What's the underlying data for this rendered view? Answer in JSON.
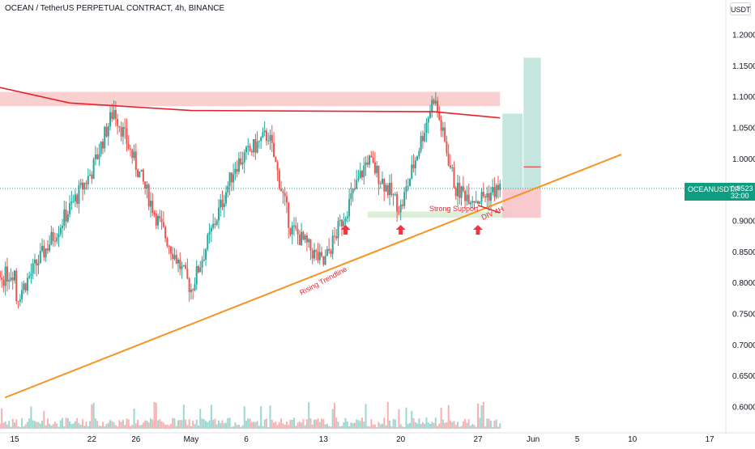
{
  "header": {
    "title": "OCEAN / TetherUS PERPETUAL CONTRACT, 4h, BINANCE",
    "currency": "USDT"
  },
  "last_price": {
    "symbol": "OCEANUSDT.P",
    "price": "0.9523",
    "timer": "32:00",
    "color": "#0f9d82"
  },
  "annotations": {
    "rising_trendline": "Rising Trendline",
    "strong_support": "Strong Support",
    "div_4h": "DIV 4H"
  },
  "colors": {
    "up": "#26a69a",
    "down": "#ef5350",
    "ma": "#e5232d",
    "trendline": "#f7931e",
    "resistance_zone": "#f8c8c8",
    "support_zone": "#d9ecd5",
    "arrow": "#f23645"
  },
  "chart_data": {
    "type": "candlestick",
    "symbol": "OCEAN / TetherUS PERPETUAL CONTRACT",
    "interval": "4h",
    "exchange": "BINANCE",
    "y_axis": {
      "range": [
        0.6,
        1.2
      ],
      "ticks": [
        "1.2000",
        "1.1500",
        "1.1000",
        "1.0500",
        "1.0000",
        "0.9500",
        "0.9000",
        "0.8500",
        "0.8000",
        "0.7500",
        "0.7000",
        "0.6500",
        "0.6000"
      ]
    },
    "x_axis": {
      "ticks": [
        "15",
        "22",
        "26",
        "May",
        "6",
        "13",
        "20",
        "27",
        "Jun",
        "5",
        "10",
        "17"
      ]
    },
    "key_prices": [
      {
        "x": "Apr 15",
        "price": 0.77
      },
      {
        "x": "Apr 22",
        "price": 0.98
      },
      {
        "x": "Apr 24",
        "price": 1.08
      },
      {
        "x": "Apr 28",
        "price": 0.9
      },
      {
        "x": "May 1",
        "price": 0.79
      },
      {
        "x": "May 5",
        "price": 0.99
      },
      {
        "x": "May 8",
        "price": 1.04
      },
      {
        "x": "May 10",
        "price": 0.89
      },
      {
        "x": "May 13",
        "price": 0.83
      },
      {
        "x": "May 17",
        "price": 1.0
      },
      {
        "x": "May 20",
        "price": 0.92
      },
      {
        "x": "May 23",
        "price": 1.1
      },
      {
        "x": "May 25",
        "price": 0.95
      },
      {
        "x": "May 27",
        "price": 0.935
      },
      {
        "x": "May 29",
        "price": 0.9523
      }
    ],
    "moving_average": [
      {
        "x": "Apr 11",
        "y": 1.115
      },
      {
        "x": "Apr 20",
        "y": 1.09
      },
      {
        "x": "May 1",
        "y": 1.078
      },
      {
        "x": "May 23",
        "y": 1.076
      },
      {
        "x": "May 29",
        "y": 1.066
      }
    ],
    "trendline": [
      {
        "x": "Apr 11",
        "y": 0.615
      },
      {
        "x": "Jun 9",
        "y": 1.007
      }
    ],
    "resistance_zone": [
      1.085,
      1.108
    ],
    "support_zone": [
      0.905,
      0.915
    ],
    "trade_box": {
      "entry": 0.9523,
      "stop": 0.905,
      "targets": [
        0.987,
        1.073,
        1.163
      ]
    },
    "grid": false,
    "legend": "none"
  }
}
